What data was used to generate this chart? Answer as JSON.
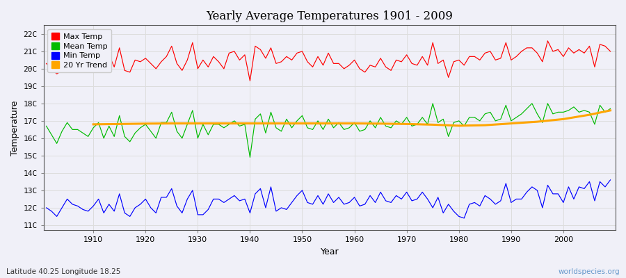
{
  "title": "Yearly Average Temperatures 1901 - 2009",
  "xlabel": "Year",
  "ylabel": "Temperature",
  "years_start": 1901,
  "years_end": 2009,
  "fig_bg_color": "#f0f0f8",
  "plot_bg_color": "#f0f0f8",
  "grid_color": "#dddddd",
  "max_temp_color": "#ff0000",
  "mean_temp_color": "#00bb00",
  "min_temp_color": "#0000ff",
  "trend_color": "#ffa500",
  "yticks": [
    11,
    12,
    13,
    14,
    15,
    16,
    17,
    18,
    19,
    20,
    21,
    22
  ],
  "ylim": [
    10.7,
    22.5
  ],
  "xlim": [
    1900.5,
    2010
  ],
  "footnote_left": "Latitude 40.25 Longitude 18.25",
  "footnote_right": "worldspecies.org",
  "legend_labels": [
    "Max Temp",
    "Mean Temp",
    "Min Temp",
    "20 Yr Trend"
  ],
  "max_temps": [
    20.3,
    20.0,
    19.7,
    19.9,
    20.5,
    20.4,
    20.2,
    19.9,
    19.8,
    20.2,
    21.0,
    20.2,
    20.8,
    20.1,
    21.2,
    19.9,
    19.8,
    20.5,
    20.4,
    20.6,
    20.3,
    20.0,
    20.4,
    20.7,
    21.3,
    20.3,
    19.9,
    20.5,
    21.5,
    20.0,
    20.5,
    20.1,
    20.7,
    20.4,
    20.0,
    20.9,
    21.0,
    20.5,
    20.8,
    19.3,
    21.3,
    21.1,
    20.6,
    21.2,
    20.3,
    20.4,
    20.7,
    20.5,
    20.9,
    21.0,
    20.4,
    20.1,
    20.7,
    20.2,
    20.9,
    20.3,
    20.3,
    20.0,
    20.2,
    20.5,
    20.0,
    19.8,
    20.2,
    20.1,
    20.6,
    20.1,
    19.9,
    20.5,
    20.4,
    20.8,
    20.3,
    20.2,
    20.7,
    20.2,
    21.5,
    20.3,
    20.5,
    19.5,
    20.4,
    20.5,
    20.2,
    20.7,
    20.7,
    20.5,
    20.9,
    21.0,
    20.5,
    20.6,
    21.5,
    20.5,
    20.7,
    21.0,
    21.2,
    21.2,
    20.9,
    20.4,
    21.6,
    21.0,
    21.1,
    20.7,
    21.2,
    20.9,
    21.1,
    20.9,
    21.3,
    20.1,
    21.4,
    21.3,
    21.0
  ],
  "mean_temps": [
    16.7,
    16.2,
    15.7,
    16.4,
    16.9,
    16.5,
    16.5,
    16.3,
    16.1,
    16.6,
    16.9,
    16.0,
    16.7,
    16.1,
    17.3,
    16.1,
    15.8,
    16.3,
    16.6,
    16.8,
    16.4,
    16.0,
    16.9,
    16.9,
    17.5,
    16.4,
    16.0,
    16.8,
    17.6,
    16.0,
    16.8,
    16.2,
    16.8,
    16.8,
    16.6,
    16.8,
    17.0,
    16.7,
    16.8,
    14.9,
    17.1,
    17.4,
    16.3,
    17.5,
    16.6,
    16.4,
    17.1,
    16.6,
    17.0,
    17.3,
    16.6,
    16.5,
    17.0,
    16.5,
    17.1,
    16.6,
    16.9,
    16.5,
    16.6,
    16.9,
    16.4,
    16.5,
    17.0,
    16.6,
    17.2,
    16.7,
    16.6,
    17.0,
    16.8,
    17.2,
    16.7,
    16.8,
    17.2,
    16.8,
    18.0,
    16.9,
    17.1,
    16.1,
    16.9,
    17.0,
    16.7,
    17.2,
    17.2,
    17.0,
    17.4,
    17.5,
    17.0,
    17.1,
    17.9,
    17.0,
    17.2,
    17.4,
    17.7,
    18.0,
    17.4,
    16.9,
    18.0,
    17.4,
    17.5,
    17.5,
    17.6,
    17.8,
    17.5,
    17.6,
    17.5,
    16.8,
    17.9,
    17.5,
    17.7
  ],
  "min_temps": [
    12.0,
    11.8,
    11.5,
    12.0,
    12.5,
    12.2,
    12.1,
    11.9,
    11.8,
    12.1,
    12.5,
    11.7,
    12.2,
    11.8,
    12.8,
    11.7,
    11.5,
    12.0,
    12.2,
    12.5,
    12.0,
    11.7,
    12.6,
    12.6,
    13.1,
    12.1,
    11.7,
    12.5,
    13.0,
    11.6,
    11.6,
    11.9,
    12.5,
    12.5,
    12.3,
    12.5,
    12.7,
    12.4,
    12.5,
    11.7,
    12.8,
    13.1,
    12.0,
    13.2,
    11.8,
    12.0,
    11.9,
    12.3,
    12.7,
    13.0,
    12.3,
    12.2,
    12.7,
    12.2,
    12.8,
    12.3,
    12.6,
    12.2,
    12.3,
    12.6,
    12.1,
    12.2,
    12.7,
    12.3,
    12.9,
    12.4,
    12.3,
    12.7,
    12.5,
    12.9,
    12.4,
    12.5,
    12.9,
    12.5,
    12.0,
    12.6,
    11.7,
    12.2,
    11.8,
    11.5,
    11.4,
    12.2,
    12.3,
    12.1,
    12.7,
    12.5,
    12.2,
    12.4,
    13.4,
    12.3,
    12.5,
    12.5,
    12.9,
    13.2,
    13.0,
    12.0,
    13.3,
    12.8,
    12.8,
    12.3,
    13.2,
    12.5,
    13.2,
    13.1,
    13.5,
    12.4,
    13.5,
    13.2,
    13.6
  ],
  "trend_years": [
    1910,
    1915,
    1920,
    1925,
    1930,
    1935,
    1940,
    1945,
    1950,
    1955,
    1960,
    1965,
    1970,
    1975,
    1980,
    1985,
    1990,
    1995,
    2000,
    2005,
    2009
  ],
  "trend_values": [
    16.8,
    16.82,
    16.84,
    16.85,
    16.85,
    16.85,
    16.85,
    16.85,
    16.85,
    16.85,
    16.85,
    16.84,
    16.82,
    16.78,
    16.72,
    16.75,
    16.85,
    16.95,
    17.1,
    17.35,
    17.6
  ]
}
